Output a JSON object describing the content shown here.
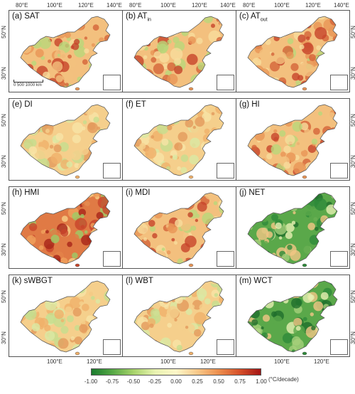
{
  "panels": [
    {
      "letter": "(a)",
      "name": "SAT",
      "sub": "",
      "palette": "warm"
    },
    {
      "letter": "(b)",
      "name": "AT",
      "sub": "in",
      "palette": "warm"
    },
    {
      "letter": "(c)",
      "name": "AT",
      "sub": "out",
      "palette": "warm"
    },
    {
      "letter": "(e)",
      "name": "DI",
      "sub": "",
      "palette": "mild"
    },
    {
      "letter": "(f)",
      "name": "ET",
      "sub": "",
      "palette": "mild"
    },
    {
      "letter": "(g)",
      "name": "HI",
      "sub": "",
      "palette": "warm"
    },
    {
      "letter": "(h)",
      "name": "HMI",
      "sub": "",
      "palette": "hot"
    },
    {
      "letter": "(i)",
      "name": "MDI",
      "sub": "",
      "palette": "warm"
    },
    {
      "letter": "(j)",
      "name": "NET",
      "sub": "",
      "palette": "green"
    },
    {
      "letter": "(k)",
      "name": "sWBGT",
      "sub": "",
      "palette": "mild"
    },
    {
      "letter": "(l)",
      "name": "WBT",
      "sub": "",
      "palette": "mild"
    },
    {
      "letter": "(m)",
      "name": "WCT",
      "sub": "",
      "palette": "green"
    }
  ],
  "lon_ticks_top": [
    "80°E",
    "100°E",
    "120°E",
    "140°E"
  ],
  "lon_ticks_bottom": [
    "100°E",
    "120°E"
  ],
  "lat_ticks": [
    "50°N",
    "30°N"
  ],
  "scale_bar": "0   500  1000 km",
  "colorbar": {
    "ticks": [
      "-1.00",
      "-0.75",
      "-0.50",
      "-0.25",
      "0.00",
      "0.25",
      "0.50",
      "0.75",
      "1.00"
    ],
    "unit": "(°C/decade)",
    "colors": [
      "#1a7a2e",
      "#56a845",
      "#a8d36b",
      "#e8f2b0",
      "#fdf6c8",
      "#f7c98a",
      "#ec8f4e",
      "#d6512a",
      "#a31515"
    ]
  },
  "palettes": {
    "warm": [
      "#f3c07e",
      "#e89556",
      "#d4643a",
      "#f7dc9c",
      "#b9d77a",
      "#c7432a"
    ],
    "mild": [
      "#f5cf8c",
      "#f0b06a",
      "#f8e3a6",
      "#d9e8a4",
      "#e39a5c",
      "#c6dd8e"
    ],
    "hot": [
      "#e07a45",
      "#c8452b",
      "#a72519",
      "#f0a35c",
      "#f6cf86",
      "#9ccc66"
    ],
    "green": [
      "#5aa84a",
      "#2e8a39",
      "#a5d07a",
      "#e6efb2",
      "#f2c584",
      "#1f6e2c"
    ]
  }
}
